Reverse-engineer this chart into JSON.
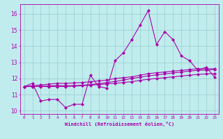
{
  "title": "",
  "xlabel": "Windchill (Refroidissement éolien,°C)",
  "bg_color": "#c0ecee",
  "line_color": "#aa00aa",
  "grid_color": "#99cccc",
  "hours": [
    0,
    1,
    2,
    3,
    4,
    5,
    6,
    7,
    8,
    9,
    10,
    11,
    12,
    13,
    14,
    15,
    16,
    17,
    18,
    19,
    20,
    21,
    22,
    23
  ],
  "series1": [
    11.5,
    11.7,
    10.6,
    10.7,
    10.7,
    10.2,
    10.4,
    10.4,
    12.2,
    11.5,
    11.4,
    13.1,
    13.6,
    14.4,
    15.3,
    16.2,
    14.1,
    14.9,
    14.4,
    13.4,
    13.1,
    12.5,
    12.7,
    12.1
  ],
  "series2": [
    11.5,
    11.55,
    11.6,
    11.65,
    11.7,
    11.7,
    11.72,
    11.75,
    11.8,
    11.85,
    11.9,
    12.0,
    12.05,
    12.1,
    12.2,
    12.3,
    12.35,
    12.4,
    12.45,
    12.5,
    12.55,
    12.6,
    12.6,
    12.6
  ],
  "series3": [
    11.5,
    11.5,
    11.5,
    11.5,
    11.5,
    11.5,
    11.52,
    11.55,
    11.58,
    11.62,
    11.66,
    11.7,
    11.75,
    11.8,
    11.88,
    11.95,
    12.0,
    12.05,
    12.1,
    12.15,
    12.2,
    12.25,
    12.28,
    12.3
  ],
  "series4": [
    11.5,
    11.5,
    11.52,
    11.54,
    11.56,
    11.55,
    11.56,
    11.58,
    11.62,
    11.68,
    11.74,
    11.82,
    11.9,
    12.0,
    12.08,
    12.16,
    12.22,
    12.28,
    12.34,
    12.4,
    12.46,
    12.5,
    12.52,
    12.55
  ],
  "ylim": [
    9.8,
    16.6
  ],
  "yticks": [
    10,
    11,
    12,
    13,
    14,
    15,
    16
  ],
  "xlim": [
    -0.5,
    23.5
  ],
  "xticks": [
    0,
    1,
    2,
    3,
    4,
    5,
    6,
    7,
    8,
    9,
    10,
    11,
    12,
    13,
    14,
    15,
    16,
    17,
    18,
    19,
    20,
    21,
    22,
    23
  ]
}
